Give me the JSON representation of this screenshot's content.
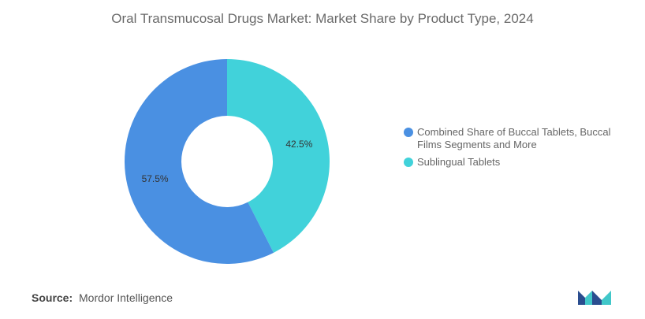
{
  "chart_data": {
    "type": "pie",
    "title": "Oral Transmucosal Drugs Market: Market Share by Product Type, 2024",
    "slices": [
      {
        "label": "Sublingual Tablets",
        "value": 42.5,
        "display": "42.5%",
        "color": "#41d2da"
      },
      {
        "label": "Combined Share of Buccal Tablets, Buccal Films Segments and More",
        "value": 57.5,
        "display": "57.5%",
        "color": "#4a90e2"
      }
    ],
    "donut": true,
    "legend_position": "right"
  },
  "legend": {
    "items": [
      {
        "label": "Combined Share of Buccal Tablets, Buccal Films Segments and More",
        "color": "#4a90e2"
      },
      {
        "label": "Sublingual Tablets",
        "color": "#41d2da"
      }
    ]
  },
  "source": {
    "label": "Source:",
    "text": "Mordor Intelligence"
  }
}
